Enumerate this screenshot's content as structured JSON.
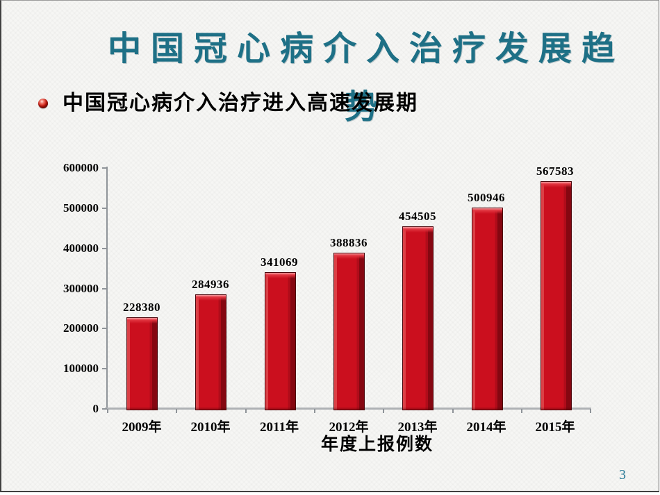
{
  "slide": {
    "title": "中国冠心病介入治疗发展趋势",
    "title_wrap_after": 12,
    "bullet": {
      "icon": "red-sphere-bullet-icon",
      "text": "中国冠心病介入治疗进入高速发展期"
    },
    "page_number": "3"
  },
  "colors": {
    "title_teal": "#1e7086",
    "page_number_teal": "#2a7b97",
    "bar_face": "#cb0f1e",
    "bar_highlight": "#db4046",
    "bar_shadow": "#850711",
    "bar_bevel_light": "#f29a9e",
    "bar_bevel": "#e23540",
    "bar_border": "#4b0309",
    "axis_line": "#aeb1b4",
    "y_axis_line": "#8f9499",
    "label_text": "#000000"
  },
  "chart_data": {
    "type": "bar",
    "title": "",
    "xlabel": "年度上报例数",
    "ylabel": "",
    "categories": [
      "2009年",
      "2010年",
      "2011年",
      "2012年",
      "2013年",
      "2014年",
      "2015年"
    ],
    "values": [
      228380,
      284936,
      341069,
      388836,
      454505,
      500946,
      567583
    ],
    "data_labels": [
      "228380",
      "284936",
      "341069",
      "388836",
      "454505",
      "500946",
      "567583"
    ],
    "ylim": [
      0,
      600000
    ],
    "y_tick_interval": 100000,
    "y_tick_labels": [
      "0",
      "100000",
      "200000",
      "300000",
      "400000",
      "500000",
      "600000"
    ],
    "grid": false,
    "legend": false,
    "bar_color_hex": "#cb0f1e"
  }
}
